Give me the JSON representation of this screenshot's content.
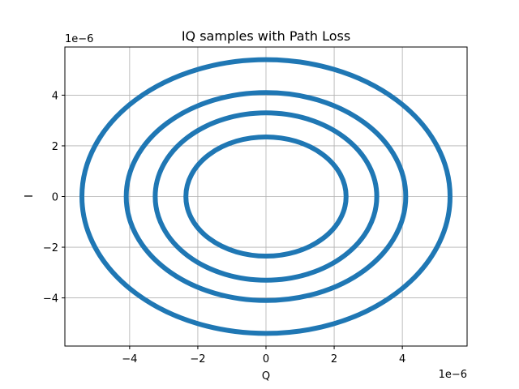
{
  "chart_data": {
    "type": "scatter",
    "title": "IQ samples with Path Loss",
    "xlabel": "Q",
    "ylabel": "I",
    "x_offset_label": "1e−6",
    "y_offset_label": "1e−6",
    "xlim": [
      -5.9,
      5.9
    ],
    "ylim": [
      -5.9,
      5.9
    ],
    "xticks": [
      -4,
      -2,
      0,
      2,
      4
    ],
    "xtick_labels": [
      "−4",
      "−2",
      "0",
      "2",
      "4"
    ],
    "yticks": [
      -4,
      -2,
      0,
      2,
      4
    ],
    "ytick_labels": [
      "−4",
      "−2",
      "0",
      "2",
      "4"
    ],
    "grid": true,
    "marker_color": "#1f77b4",
    "series": [
      {
        "radius_q": 5.4,
        "radius_i": 5.4
      },
      {
        "radius_q": 4.1,
        "radius_i": 4.1
      },
      {
        "radius_q": 3.25,
        "radius_i": 3.3
      },
      {
        "radius_q": 2.35,
        "radius_i": 2.35
      }
    ]
  }
}
